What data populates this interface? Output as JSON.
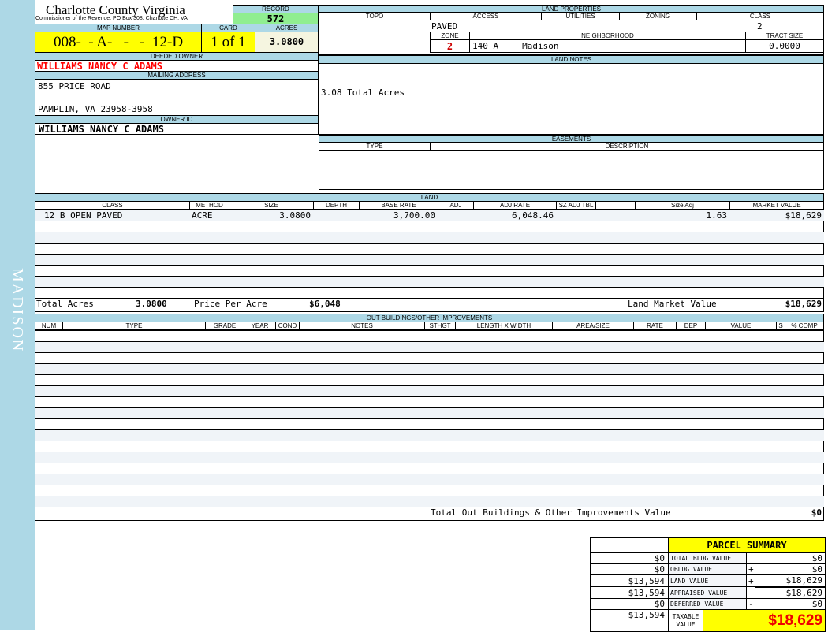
{
  "sidebar": {
    "label": "MADISON"
  },
  "header": {
    "title": "Charlotte County Virginia",
    "subtitle": "Commissioner of the Revenue, PO Box 308, Charlotte CH, VA",
    "record_label": "RECORD",
    "record": "572",
    "map_label": "MAP NUMBER",
    "map": "008-  - A-   -   -  12-D",
    "card_label": "CARD",
    "card": "1 of 1",
    "acres_label": "ACRES",
    "acres": "3.0800"
  },
  "owner": {
    "deeded_label": "DEEDED OWNER",
    "deeded": "WILLIAMS NANCY C ADAMS",
    "mailing_label": "MAILING ADDRESS",
    "address1": "855 PRICE ROAD",
    "address2": "PAMPLIN, VA 23958-3958",
    "id_label": "OWNER ID",
    "id": "WILLIAMS NANCY C ADAMS"
  },
  "land_properties": {
    "title": "LAND PROPERTIES",
    "topo": "TOPO",
    "access": "ACCESS",
    "utilities": "UTILITIES",
    "zoning": "ZONING",
    "class": "CLASS",
    "access_value": "PAVED",
    "class_value": "2",
    "zone_label": "ZONE",
    "neighborhood_label": "NEIGHBORHOOD",
    "tract_label": "TRACT SIZE",
    "zone": "2",
    "neighborhood_code": "140 A",
    "neighborhood": "Madison",
    "tract": "0.0000"
  },
  "land_notes": {
    "title": "LAND NOTES",
    "text": "3.08 Total Acres"
  },
  "easements": {
    "title": "EASEMENTS",
    "type": "TYPE",
    "description": "DESCRIPTION"
  },
  "land": {
    "title": "LAND",
    "columns": [
      "CLASS",
      "METHOD",
      "SIZE",
      "DEPTH",
      "BASE RATE",
      "ADJ",
      "ADJ RATE",
      "SZ ADJ TBL",
      "",
      "Size Adj",
      "MARKET VALUE"
    ],
    "rows": [
      [
        "12 B OPEN PAVED",
        "ACRE",
        "3.0800",
        "",
        "3,700.00",
        "",
        "6,048.46",
        "",
        "",
        "1.63",
        "$18,629"
      ]
    ],
    "total_acres_label": "Total Acres",
    "total_acres": "3.0800",
    "ppa_label": "Price Per Acre",
    "ppa": "$6,048",
    "lmv_label": "Land Market Value",
    "lmv": "$18,629"
  },
  "outbuildings": {
    "title": "OUT BUILDINGS/OTHER IMPROVEMENTS",
    "columns": [
      "NUM",
      "TYPE",
      "GRADE",
      "YEAR",
      "COND",
      "NOTES",
      "STHGT",
      "LENGTH X WIDTH",
      "AREA/SIZE",
      "RATE",
      "DEP",
      "VALUE",
      "S",
      "% COMP"
    ],
    "total_label": "Total Out Buildings & Other Improvements Value",
    "total": "$0"
  },
  "summary": {
    "title": "PARCEL SUMMARY",
    "rows": [
      {
        "prev": "$0",
        "label": "TOTAL BLDG VALUE",
        "op": "",
        "value": "$0"
      },
      {
        "prev": "$0",
        "label": "OBLDG VALUE",
        "op": "+",
        "value": "$0"
      },
      {
        "prev": "$13,594",
        "label": "LAND VALUE",
        "op": "+",
        "value": "$18,629"
      },
      {
        "prev": "$13,594",
        "label": "APPRAISED VALUE",
        "op": "",
        "value": "$18,629"
      },
      {
        "prev": "$0",
        "label": "DEFERRED VALUE",
        "op": "-",
        "value": "$0"
      }
    ],
    "taxable_prev": "$13,594",
    "taxable_label": "TAXABLE VALUE",
    "taxable": "$18,629"
  },
  "colors": {
    "header": "#add8e6",
    "highlight": "#ffff00",
    "record": "#90ee90",
    "owner": "#ff0000"
  }
}
